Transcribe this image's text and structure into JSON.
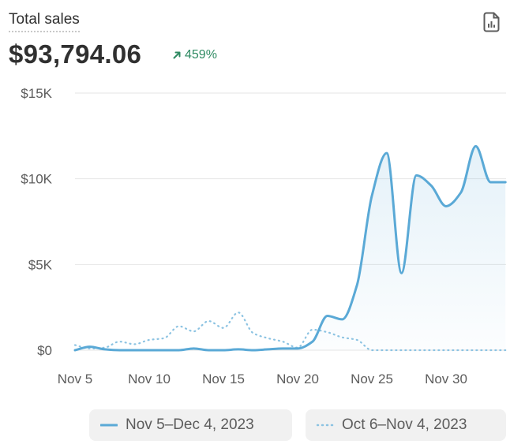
{
  "header": {
    "title": "Total sales",
    "total": "$93,794.06",
    "change": "459%",
    "export_icon": "report-document-icon",
    "change_icon": "arrow-up-right-icon"
  },
  "colors": {
    "current": "#5aa9d6",
    "previous": "#8cc3e2",
    "grid": "#e6e6e6",
    "axis_text": "#5c5c5c",
    "positive": "#2e8a62"
  },
  "chart_data": {
    "type": "line",
    "title": "Total sales",
    "x": [
      "Nov 5",
      "Nov 6",
      "Nov 7",
      "Nov 8",
      "Nov 9",
      "Nov 10",
      "Nov 11",
      "Nov 12",
      "Nov 13",
      "Nov 14",
      "Nov 15",
      "Nov 16",
      "Nov 17",
      "Nov 18",
      "Nov 19",
      "Nov 20",
      "Nov 21",
      "Nov 22",
      "Nov 23",
      "Nov 24",
      "Nov 25",
      "Nov 26",
      "Nov 27",
      "Nov 28",
      "Nov 29",
      "Nov 30",
      "Dec 1",
      "Dec 2",
      "Dec 3",
      "Dec 4"
    ],
    "x_ticks": [
      "Nov 5",
      "Nov 10",
      "Nov 15",
      "Nov 20",
      "Nov 25",
      "Nov 30"
    ],
    "y_ticks": [
      "$0",
      "$5K",
      "$10K",
      "$15K"
    ],
    "ylim": [
      0,
      15000
    ],
    "grid": true,
    "legend_position": "bottom",
    "series": [
      {
        "name": "Nov 5–Dec 4, 2023",
        "style": "solid",
        "area_fill": true,
        "values": [
          0,
          200,
          50,
          0,
          0,
          0,
          0,
          0,
          100,
          0,
          0,
          50,
          0,
          50,
          100,
          100,
          500,
          2000,
          1800,
          3800,
          9000,
          11500,
          4500,
          10200,
          9600,
          8400,
          9200,
          11900,
          9800,
          9800
        ]
      },
      {
        "name": "Oct 6–Nov 4, 2023",
        "style": "dotted",
        "values": [
          300,
          100,
          150,
          500,
          350,
          600,
          700,
          1400,
          1100,
          1700,
          1300,
          2200,
          1000,
          700,
          500,
          150,
          1200,
          1050,
          750,
          600,
          0,
          0,
          0,
          0,
          0,
          0,
          0,
          0,
          0,
          0
        ]
      }
    ]
  },
  "legend": {
    "current_label": "Nov 5–Dec 4, 2023",
    "previous_label": "Oct 6–Nov 4, 2023"
  }
}
